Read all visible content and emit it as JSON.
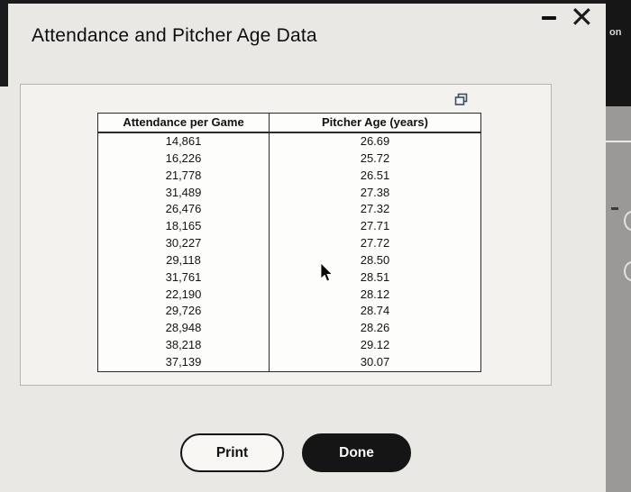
{
  "window": {
    "title": "Attendance and Pitcher Age Data"
  },
  "edge": {
    "partial_label": "on"
  },
  "table": {
    "headers": [
      "Attendance per Game",
      "Pitcher Age (years)"
    ],
    "rows": [
      [
        "14,861",
        "26.69"
      ],
      [
        "16,226",
        "25.72"
      ],
      [
        "21,778",
        "26.51"
      ],
      [
        "31,489",
        "27.38"
      ],
      [
        "26,476",
        "27.32"
      ],
      [
        "18,165",
        "27.71"
      ],
      [
        "30,227",
        "27.72"
      ],
      [
        "29,118",
        "28.50"
      ],
      [
        "31,761",
        "28.51"
      ],
      [
        "22,190",
        "28.12"
      ],
      [
        "29,726",
        "28.74"
      ],
      [
        "28,948",
        "28.26"
      ],
      [
        "38,218",
        "29.12"
      ],
      [
        "37,139",
        "30.07"
      ]
    ]
  },
  "buttons": {
    "print_label": "Print",
    "done_label": "Done"
  },
  "colors": {
    "done_bg": "#151515",
    "panel_bg": "#f3f2ef",
    "strip_dark": "#161616"
  }
}
